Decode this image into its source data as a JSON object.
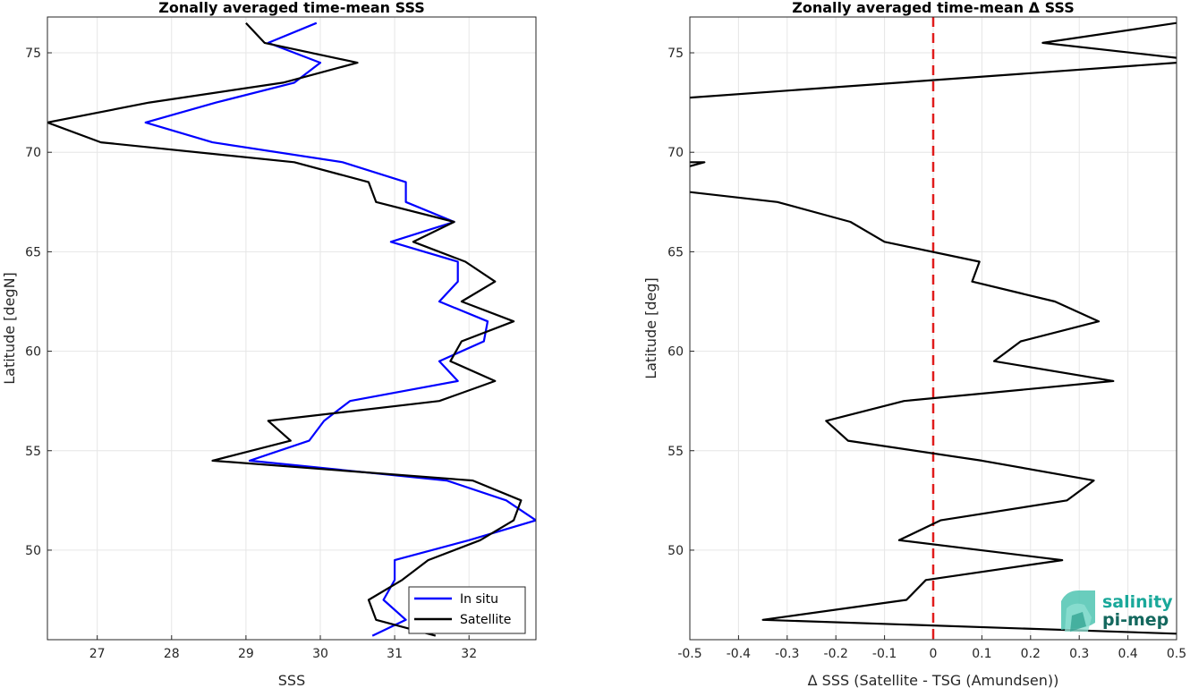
{
  "colors": {
    "in_situ": "#0000ff",
    "satellite": "#000000",
    "zero_line": "#e01b1b",
    "grid": "#e6e6e6"
  },
  "logo": {
    "line1": "salinity",
    "line2": "pi-mep"
  },
  "chart_data": [
    {
      "type": "line",
      "title": "Zonally averaged time-mean SSS",
      "xlabel": "SSS",
      "ylabel": "Latitude [degN]",
      "xlim": [
        26.33,
        32.9
      ],
      "ylim": [
        45.5,
        76.8
      ],
      "xticks": [
        27,
        28,
        29,
        30,
        31,
        32
      ],
      "yticks": [
        50,
        55,
        60,
        65,
        70,
        75
      ],
      "grid": true,
      "legend_position": "bottom-right",
      "series": [
        {
          "name": "In situ",
          "color": "#0000ff",
          "points": [
            [
              30.7,
              45.7
            ],
            [
              31.15,
              46.5
            ],
            [
              30.85,
              47.5
            ],
            [
              31.0,
              48.5
            ],
            [
              31.0,
              49.5
            ],
            [
              32.0,
              50.5
            ],
            [
              32.9,
              51.5
            ],
            [
              32.5,
              52.5
            ],
            [
              31.7,
              53.5
            ],
            [
              29.05,
              54.5
            ],
            [
              29.85,
              55.5
            ],
            [
              30.05,
              56.5
            ],
            [
              30.4,
              57.5
            ],
            [
              31.85,
              58.5
            ],
            [
              31.6,
              59.5
            ],
            [
              32.2,
              60.5
            ],
            [
              32.25,
              61.5
            ],
            [
              31.6,
              62.5
            ],
            [
              31.85,
              63.5
            ],
            [
              31.85,
              64.5
            ],
            [
              30.95,
              65.5
            ],
            [
              31.8,
              66.5
            ],
            [
              31.15,
              67.5
            ],
            [
              31.15,
              68.5
            ],
            [
              30.3,
              69.5
            ],
            [
              28.55,
              70.5
            ],
            [
              27.65,
              71.5
            ],
            [
              28.6,
              72.5
            ],
            [
              29.65,
              73.5
            ],
            [
              30.0,
              74.5
            ],
            [
              29.3,
              75.5
            ],
            [
              29.95,
              76.5
            ]
          ]
        },
        {
          "name": "Satellite",
          "color": "#000000",
          "points": [
            [
              31.55,
              45.7
            ],
            [
              30.75,
              46.5
            ],
            [
              30.65,
              47.5
            ],
            [
              31.1,
              48.5
            ],
            [
              31.45,
              49.5
            ],
            [
              32.15,
              50.5
            ],
            [
              32.6,
              51.5
            ],
            [
              32.7,
              52.5
            ],
            [
              32.05,
              53.5
            ],
            [
              28.55,
              54.5
            ],
            [
              29.6,
              55.5
            ],
            [
              29.3,
              56.5
            ],
            [
              31.6,
              57.5
            ],
            [
              32.35,
              58.5
            ],
            [
              31.75,
              59.5
            ],
            [
              31.9,
              60.5
            ],
            [
              32.6,
              61.5
            ],
            [
              31.9,
              62.5
            ],
            [
              32.35,
              63.5
            ],
            [
              31.95,
              64.5
            ],
            [
              31.25,
              65.5
            ],
            [
              31.8,
              66.5
            ],
            [
              30.75,
              67.5
            ],
            [
              30.65,
              68.5
            ],
            [
              29.65,
              69.5
            ],
            [
              27.05,
              70.5
            ],
            [
              26.33,
              71.5
            ],
            [
              27.7,
              72.5
            ],
            [
              29.5,
              73.5
            ],
            [
              30.5,
              74.5
            ],
            [
              29.25,
              75.5
            ],
            [
              29.0,
              76.5
            ]
          ]
        }
      ]
    },
    {
      "type": "line",
      "title": "Zonally averaged time-mean Δ SSS",
      "xlabel": "Δ SSS (Satellite - TSG (Amundsen))",
      "ylabel": "Latitude [deg]",
      "xlim": [
        -0.5,
        0.5
      ],
      "ylim": [
        45.5,
        76.8
      ],
      "xticks": [
        -0.5,
        -0.4,
        -0.3,
        -0.2,
        -0.1,
        0,
        0.1,
        0.2,
        0.3,
        0.4,
        0.5
      ],
      "xtick_labels": [
        "-0.5",
        "-0.4",
        "-0.3",
        "-0.2",
        "-0.1",
        "0",
        "0.1",
        "0.2",
        "0.3",
        "0.4",
        "0.5"
      ],
      "yticks": [
        50,
        55,
        60,
        65,
        70,
        75
      ],
      "grid": true,
      "reference_line": {
        "x": 0,
        "style": "dashed",
        "color": "#e01b1b"
      },
      "series": [
        {
          "color": "#000000",
          "points": [
            [
              0.5,
              45.8
            ],
            [
              -0.35,
              46.5
            ],
            [
              -0.055,
              47.5
            ],
            [
              -0.015,
              48.5
            ],
            [
              0.265,
              49.5
            ],
            [
              -0.07,
              50.5
            ],
            [
              0.015,
              51.5
            ],
            [
              0.275,
              52.5
            ],
            [
              0.33,
              53.5
            ],
            [
              0.1,
              54.5
            ],
            [
              -0.175,
              55.5
            ],
            [
              -0.22,
              56.5
            ],
            [
              -0.06,
              57.5
            ],
            [
              0.37,
              58.5
            ],
            [
              0.125,
              59.5
            ],
            [
              0.18,
              60.5
            ],
            [
              0.34,
              61.5
            ],
            [
              0.25,
              62.5
            ],
            [
              0.08,
              63.5
            ],
            [
              0.095,
              64.5
            ],
            [
              -0.1,
              65.5
            ],
            [
              -0.17,
              66.5
            ],
            [
              -0.32,
              67.5
            ],
            [
              -0.5,
              68.0
            ]
          ]
        },
        {
          "color": "#000000",
          "points": [
            [
              -0.5,
              69.3
            ],
            [
              -0.47,
              69.5
            ],
            [
              -0.5,
              69.5
            ]
          ]
        },
        {
          "color": "#000000",
          "points": [
            [
              -0.5,
              72.75
            ],
            [
              0.5,
              74.5
            ]
          ]
        },
        {
          "color": "#000000",
          "points": [
            [
              0.5,
              74.75
            ],
            [
              0.225,
              75.5
            ],
            [
              0.5,
              76.5
            ]
          ]
        }
      ]
    }
  ]
}
